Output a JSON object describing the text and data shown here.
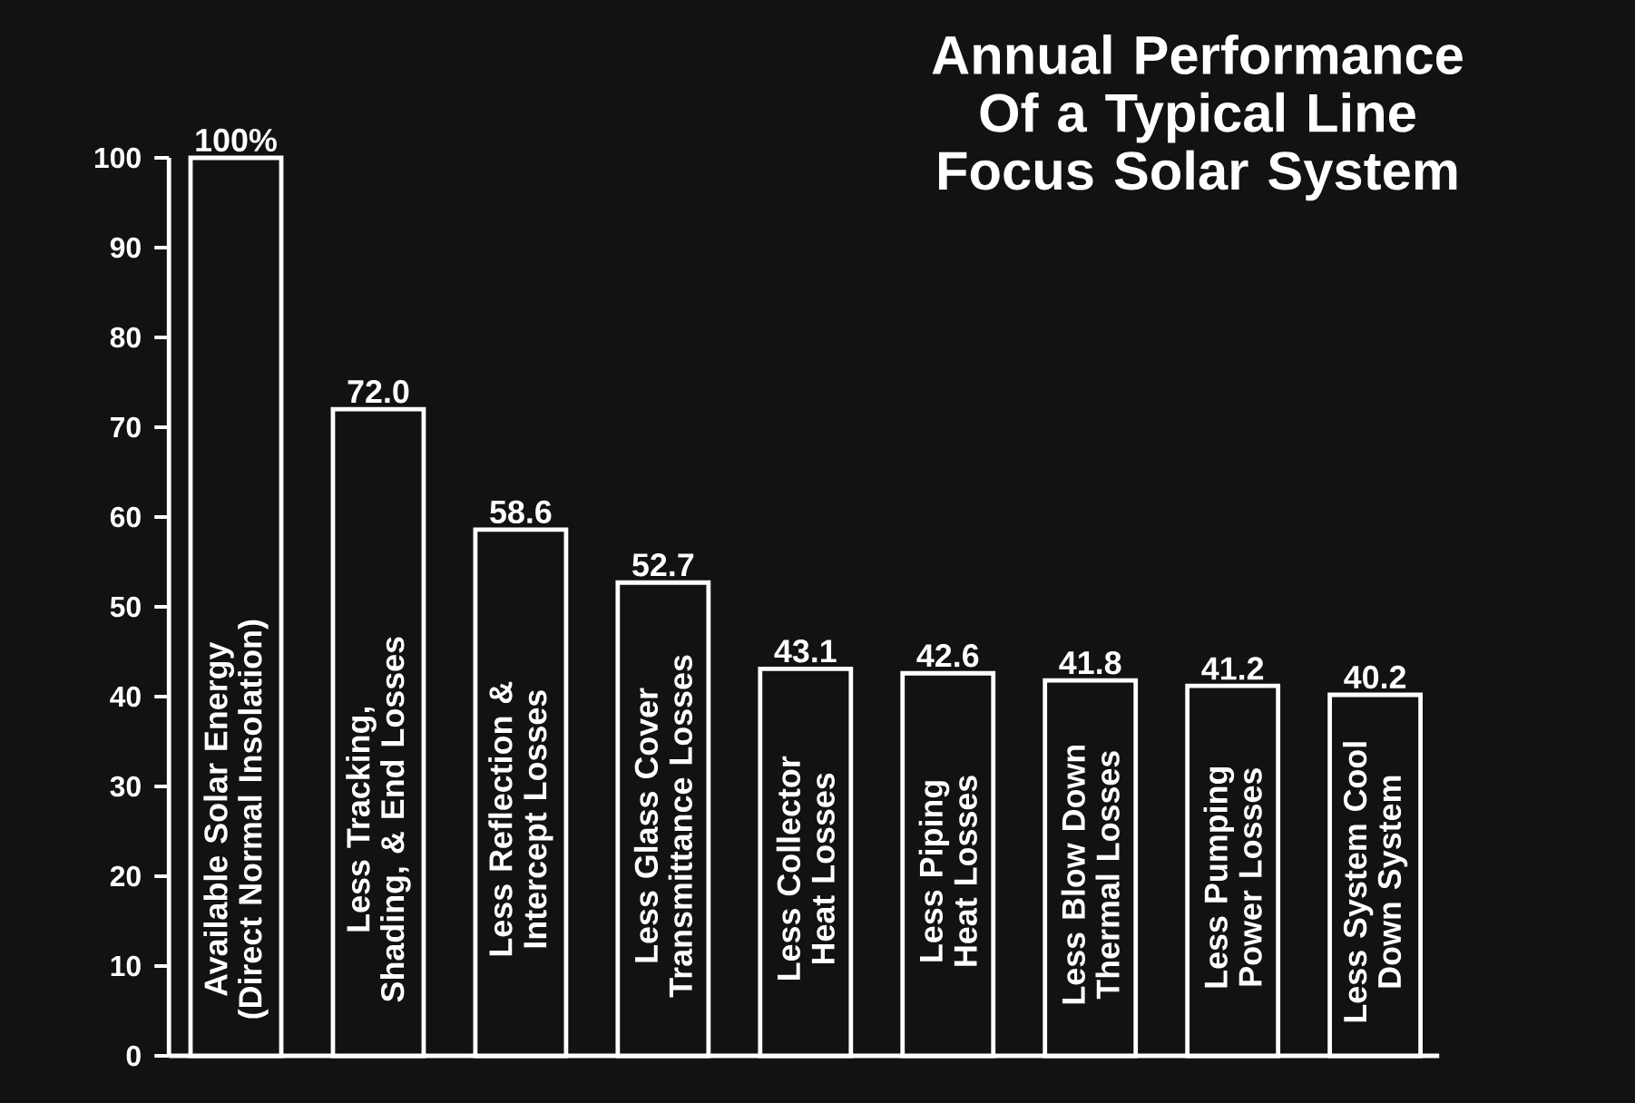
{
  "chart_data": {
    "type": "bar",
    "title": "Annual Performance Of a Typical Line Focus Solar System",
    "categories": [
      "Available Solar Energy (Direct Normal Insolation)",
      "Less Tracking, Shading, & End Losses",
      "Less Reflection & Intercept Losses",
      "Less Glass Cover Transmittance Losses",
      "Less Collector Heat Losses",
      "Less Piping Heat Losses",
      "Less Blow Down Thermal Losses",
      "Less Pumping Power Losses",
      "Less System Cool Down System"
    ],
    "values": [
      100,
      72.0,
      58.6,
      52.7,
      43.1,
      42.6,
      41.8,
      41.2,
      40.2
    ],
    "value_labels": [
      "100%",
      "72.0",
      "58.6",
      "52.7",
      "43.1",
      "42.6",
      "41.8",
      "41.2",
      "40.2"
    ],
    "color": "#ffffff",
    "ylim": [
      0,
      100
    ],
    "yticks": [
      0,
      10,
      20,
      30,
      40,
      50,
      60,
      70,
      80,
      90,
      100
    ],
    "grid": false
  }
}
